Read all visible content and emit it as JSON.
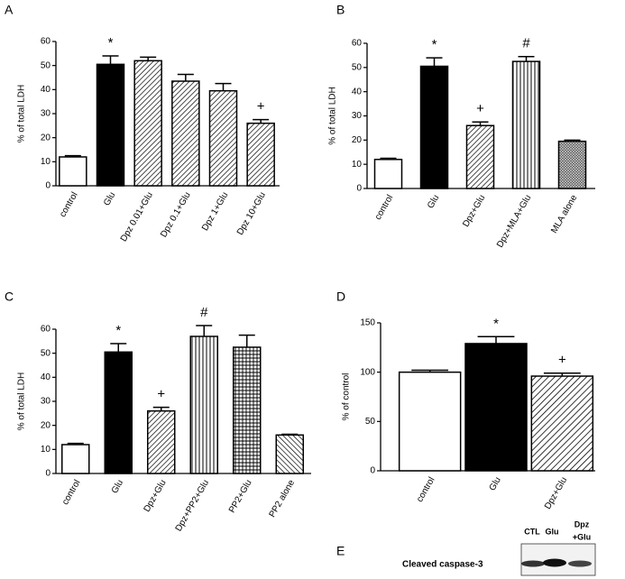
{
  "chart_data": [
    {
      "type": "bar",
      "panel": "A",
      "ylabel": "% of total LDH",
      "categories": [
        "control",
        "Glu",
        "Dpz 0.01+Glu",
        "Dpz 0.1+Glu",
        "Dpz 1+Glu",
        "Dpz 10+Glu"
      ],
      "values": [
        12,
        50.5,
        52,
        43.5,
        39.5,
        26
      ],
      "errors": [
        0.5,
        3.5,
        1.5,
        2.8,
        3,
        1.5
      ],
      "markers": [
        null,
        "*",
        null,
        null,
        null,
        "+"
      ],
      "fills": [
        "white",
        "black",
        "hatch",
        "hatch",
        "hatch",
        "hatch"
      ],
      "ylim": [
        0,
        60
      ],
      "yticks": [
        0,
        10,
        20,
        30,
        40,
        50,
        60
      ]
    },
    {
      "type": "bar",
      "panel": "B",
      "ylabel": "% of total LDH",
      "categories": [
        "control",
        "Glu",
        "Dpz+Glu",
        "Dpz+MLA+Glu",
        "MLA alone"
      ],
      "values": [
        12,
        50.5,
        26,
        52.5,
        19.5
      ],
      "errors": [
        0.5,
        3.5,
        1.5,
        2,
        0.5
      ],
      "markers": [
        null,
        "*",
        "+",
        "#",
        null
      ],
      "fills": [
        "white",
        "black",
        "hatch",
        "vertical",
        "dense"
      ],
      "ylim": [
        0,
        60
      ],
      "yticks": [
        0,
        10,
        20,
        30,
        40,
        50,
        60
      ]
    },
    {
      "type": "bar",
      "panel": "C",
      "ylabel": "% of total LDH",
      "categories": [
        "control",
        "Glu",
        "Dpz+Glu",
        "Dpz+PP2+Glu",
        "PP2+Glu",
        "PP2 alone"
      ],
      "values": [
        12,
        50.5,
        26,
        57,
        52.5,
        16
      ],
      "errors": [
        0.5,
        3.5,
        1.5,
        4.5,
        5,
        0.3
      ],
      "markers": [
        null,
        "*",
        "+",
        "#",
        null,
        null
      ],
      "fills": [
        "white",
        "black",
        "hatch",
        "vertical",
        "grid",
        "hatch-left"
      ],
      "ylim": [
        0,
        60
      ],
      "yticks": [
        0,
        10,
        20,
        30,
        40,
        50,
        60
      ]
    },
    {
      "type": "bar",
      "panel": "D",
      "ylabel": "% of control",
      "categories": [
        "control",
        "Glu",
        "Dpz+Glu"
      ],
      "values": [
        100,
        129,
        96
      ],
      "errors": [
        2,
        7,
        3
      ],
      "markers": [
        null,
        "*",
        "+"
      ],
      "fills": [
        "white",
        "black",
        "hatch-wide"
      ],
      "ylim": [
        0,
        150
      ],
      "yticks": [
        0,
        50,
        100,
        150
      ]
    }
  ],
  "blot": {
    "panel": "E",
    "row_label": "Cleaved caspase-3",
    "lanes": [
      "CTL",
      "Glu",
      [
        "Dpz",
        "+Glu"
      ]
    ]
  }
}
